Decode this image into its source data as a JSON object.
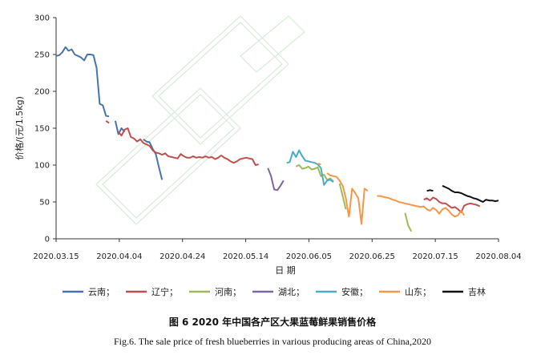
{
  "chart_data": {
    "type": "line",
    "ylabel": "价格/(元/1.5kg)",
    "xlabel": "日 期",
    "ylim": [
      0,
      300
    ],
    "yticks": [
      0,
      50,
      100,
      150,
      200,
      250,
      300
    ],
    "xlim": [
      "2020-03-15",
      "2020-08-04"
    ],
    "xticks": [
      "2020.03.15",
      "2020.04.04",
      "2020.04.24",
      "2020.05.14",
      "2020.06.05",
      "2020.06.25",
      "2020.07.15",
      "2020.08.04"
    ],
    "legend_position": "bottom",
    "grid": false,
    "series": [
      {
        "name": "云南；",
        "color": "#4a73ad",
        "segments": [
          [
            [
              "2020-03-15",
              248
            ],
            [
              "2020-03-16",
              249
            ],
            [
              "2020-03-17",
              253
            ],
            [
              "2020-03-18",
              260
            ],
            [
              "2020-03-19",
              255
            ],
            [
              "2020-03-20",
              257
            ],
            [
              "2020-03-21",
              250
            ],
            [
              "2020-03-22",
              248
            ],
            [
              "2020-03-23",
              246
            ],
            [
              "2020-03-24",
              242
            ],
            [
              "2020-03-25",
              250
            ],
            [
              "2020-03-26",
              250
            ],
            [
              "2020-03-27",
              249
            ],
            [
              "2020-03-28",
              232
            ],
            [
              "2020-03-29",
              183
            ],
            [
              "2020-03-30",
              181
            ],
            [
              "2020-03-31",
              167
            ],
            [
              "2020-04-01",
              166
            ]
          ],
          [
            [
              "2020-04-03",
              160
            ],
            [
              "2020-04-04",
              142
            ],
            [
              "2020-04-05",
              150
            ],
            [
              "2020-04-06",
              145
            ]
          ],
          [
            [
              "2020-04-12",
              135
            ],
            [
              "2020-04-13",
              132
            ],
            [
              "2020-04-14",
              131
            ],
            [
              "2020-04-15",
              122
            ],
            [
              "2020-04-16",
              115
            ],
            [
              "2020-04-17",
              97
            ],
            [
              "2020-04-18",
              80
            ]
          ]
        ]
      },
      {
        "name": "辽宁；",
        "color": "#c0504d",
        "segments": [
          [
            [
              "2020-03-31",
              160
            ],
            [
              "2020-04-01",
              157
            ]
          ],
          [
            [
              "2020-04-04",
              145
            ],
            [
              "2020-04-05",
              140
            ],
            [
              "2020-04-06",
              148
            ],
            [
              "2020-04-07",
              150
            ],
            [
              "2020-04-08",
              138
            ],
            [
              "2020-04-09",
              136
            ],
            [
              "2020-04-10",
              132
            ],
            [
              "2020-04-11",
              135
            ],
            [
              "2020-04-12",
              130
            ],
            [
              "2020-04-13",
              128
            ],
            [
              "2020-04-14",
              126
            ],
            [
              "2020-04-15",
              120
            ],
            [
              "2020-04-16",
              117
            ],
            [
              "2020-04-17",
              116
            ],
            [
              "2020-04-18",
              114
            ],
            [
              "2020-04-19",
              116
            ],
            [
              "2020-04-20",
              112
            ],
            [
              "2020-04-21",
              111
            ],
            [
              "2020-04-22",
              110
            ],
            [
              "2020-04-23",
              109
            ],
            [
              "2020-04-24",
              115
            ],
            [
              "2020-04-25",
              112
            ],
            [
              "2020-04-26",
              110
            ],
            [
              "2020-04-27",
              110
            ],
            [
              "2020-04-28",
              112
            ],
            [
              "2020-04-29",
              110
            ],
            [
              "2020-04-30",
              111
            ],
            [
              "2020-05-01",
              110
            ],
            [
              "2020-05-02",
              112
            ],
            [
              "2020-05-03",
              110
            ],
            [
              "2020-05-04",
              111
            ],
            [
              "2020-05-05",
              108
            ],
            [
              "2020-05-06",
              110
            ],
            [
              "2020-05-07",
              113
            ],
            [
              "2020-05-08",
              110
            ],
            [
              "2020-05-09",
              108
            ],
            [
              "2020-05-10",
              105
            ],
            [
              "2020-05-11",
              103
            ],
            [
              "2020-05-12",
              105
            ],
            [
              "2020-05-13",
              108
            ],
            [
              "2020-05-14",
              109
            ],
            [
              "2020-05-15",
              110
            ],
            [
              "2020-05-16",
              109
            ],
            [
              "2020-05-17",
              108
            ],
            [
              "2020-05-18",
              100
            ],
            [
              "2020-05-19",
              101
            ]
          ],
          [
            [
              "2020-07-11",
              53
            ],
            [
              "2020-07-12",
              55
            ],
            [
              "2020-07-13",
              52
            ],
            [
              "2020-07-14",
              56
            ],
            [
              "2020-07-15",
              54
            ],
            [
              "2020-07-16",
              50
            ],
            [
              "2020-07-17",
              48
            ],
            [
              "2020-07-18",
              48
            ],
            [
              "2020-07-19",
              45
            ],
            [
              "2020-07-20",
              42
            ],
            [
              "2020-07-21",
              43
            ],
            [
              "2020-07-22",
              40
            ],
            [
              "2020-07-23",
              36
            ],
            [
              "2020-07-24",
              45
            ],
            [
              "2020-07-25",
              47
            ],
            [
              "2020-07-26",
              48
            ],
            [
              "2020-07-27",
              47
            ],
            [
              "2020-07-28",
              46
            ],
            [
              "2020-07-29",
              44
            ]
          ]
        ]
      },
      {
        "name": "河南；",
        "color": "#9bbb59",
        "segments": [
          [
            [
              "2020-05-31",
              98
            ],
            [
              "2020-06-01",
              100
            ],
            [
              "2020-06-02",
              95
            ],
            [
              "2020-06-03",
              96
            ],
            [
              "2020-06-04",
              98
            ],
            [
              "2020-06-05",
              94
            ],
            [
              "2020-06-06",
              95
            ],
            [
              "2020-06-07",
              97
            ],
            [
              "2020-06-08",
              85
            ],
            [
              "2020-06-09",
              87
            ],
            [
              "2020-06-10",
              80
            ],
            [
              "2020-06-11",
              82
            ],
            [
              "2020-06-12",
              78
            ]
          ],
          [
            [
              "2020-06-14",
              75
            ],
            [
              "2020-06-15",
              58
            ],
            [
              "2020-06-16",
              40
            ]
          ],
          [
            [
              "2020-07-05",
              35
            ],
            [
              "2020-07-06",
              18
            ],
            [
              "2020-07-07",
              10
            ]
          ]
        ]
      },
      {
        "name": "湖北；",
        "color": "#8064a2",
        "segments": [
          [
            [
              "2020-05-22",
              96
            ],
            [
              "2020-05-23",
              85
            ],
            [
              "2020-05-24",
              67
            ],
            [
              "2020-05-25",
              66
            ],
            [
              "2020-05-26",
              72
            ],
            [
              "2020-05-27",
              79
            ]
          ]
        ]
      },
      {
        "name": "安徽；",
        "color": "#4bacc6",
        "segments": [
          [
            [
              "2020-05-28",
              103
            ],
            [
              "2020-05-29",
              104
            ],
            [
              "2020-05-30",
              118
            ],
            [
              "2020-05-31",
              111
            ],
            [
              "2020-06-01",
              120
            ],
            [
              "2020-06-02",
              112
            ],
            [
              "2020-06-03",
              106
            ],
            [
              "2020-06-04",
              105
            ],
            [
              "2020-06-05",
              104
            ],
            [
              "2020-06-06",
              103
            ],
            [
              "2020-06-07",
              101
            ],
            [
              "2020-06-08",
              96
            ],
            [
              "2020-06-09",
              73
            ],
            [
              "2020-06-10",
              79
            ],
            [
              "2020-06-11",
              80
            ],
            [
              "2020-06-12",
              77
            ]
          ]
        ]
      },
      {
        "name": "山东；",
        "color": "#f79646",
        "segments": [
          [
            [
              "2020-06-07",
              102
            ],
            [
              "2020-06-08",
              101
            ]
          ],
          [
            [
              "2020-06-10",
              89
            ],
            [
              "2020-06-11",
              86
            ],
            [
              "2020-06-12",
              85
            ],
            [
              "2020-06-13",
              84
            ],
            [
              "2020-06-14",
              79
            ],
            [
              "2020-06-15",
              72
            ],
            [
              "2020-06-16",
              55
            ],
            [
              "2020-06-17",
              30
            ],
            [
              "2020-06-18",
              68
            ],
            [
              "2020-06-19",
              62
            ],
            [
              "2020-06-20",
              55
            ],
            [
              "2020-06-21",
              20
            ],
            [
              "2020-06-22",
              68
            ],
            [
              "2020-06-23",
              65
            ]
          ],
          [
            [
              "2020-06-26",
              58
            ],
            [
              "2020-06-27",
              58
            ],
            [
              "2020-06-28",
              57
            ],
            [
              "2020-06-29",
              56
            ],
            [
              "2020-06-30",
              55
            ],
            [
              "2020-07-01",
              53
            ],
            [
              "2020-07-02",
              52
            ],
            [
              "2020-07-03",
              50
            ],
            [
              "2020-07-04",
              49
            ],
            [
              "2020-07-05",
              48
            ],
            [
              "2020-07-06",
              47
            ],
            [
              "2020-07-07",
              46
            ],
            [
              "2020-07-08",
              45
            ],
            [
              "2020-07-09",
              44
            ],
            [
              "2020-07-10",
              43
            ],
            [
              "2020-07-11",
              44
            ],
            [
              "2020-07-12",
              40
            ],
            [
              "2020-07-13",
              38
            ],
            [
              "2020-07-14",
              42
            ],
            [
              "2020-07-15",
              39
            ],
            [
              "2020-07-16",
              34
            ],
            [
              "2020-07-17",
              40
            ],
            [
              "2020-07-18",
              42
            ],
            [
              "2020-07-19",
              38
            ],
            [
              "2020-07-20",
              33
            ],
            [
              "2020-07-21",
              30
            ],
            [
              "2020-07-22",
              32
            ],
            [
              "2020-07-23",
              38
            ],
            [
              "2020-07-24",
              32
            ]
          ]
        ]
      },
      {
        "name": "吉林",
        "color": "#111111",
        "segments": [
          [
            [
              "2020-07-12",
              65
            ],
            [
              "2020-07-13",
              66
            ],
            [
              "2020-07-14",
              65
            ]
          ],
          [
            [
              "2020-07-17",
              72
            ],
            [
              "2020-07-18",
              70
            ],
            [
              "2020-07-19",
              68
            ],
            [
              "2020-07-20",
              65
            ],
            [
              "2020-07-21",
              63
            ],
            [
              "2020-07-22",
              63
            ],
            [
              "2020-07-23",
              62
            ],
            [
              "2020-07-24",
              60
            ],
            [
              "2020-07-25",
              58
            ],
            [
              "2020-07-26",
              57
            ],
            [
              "2020-07-27",
              55
            ],
            [
              "2020-07-28",
              54
            ],
            [
              "2020-07-29",
              52
            ],
            [
              "2020-07-30",
              50
            ],
            [
              "2020-07-31",
              53
            ],
            [
              "2020-08-01",
              52
            ],
            [
              "2020-08-02",
              52
            ],
            [
              "2020-08-03",
              51
            ],
            [
              "2020-08-04",
              52
            ]
          ]
        ]
      }
    ]
  },
  "caption": {
    "zh": "图 6    2020 年中国各产区大果蓝莓鲜果销售价格",
    "en": "Fig.6. The sale price of fresh blueberries in various producing areas of China,2020"
  }
}
